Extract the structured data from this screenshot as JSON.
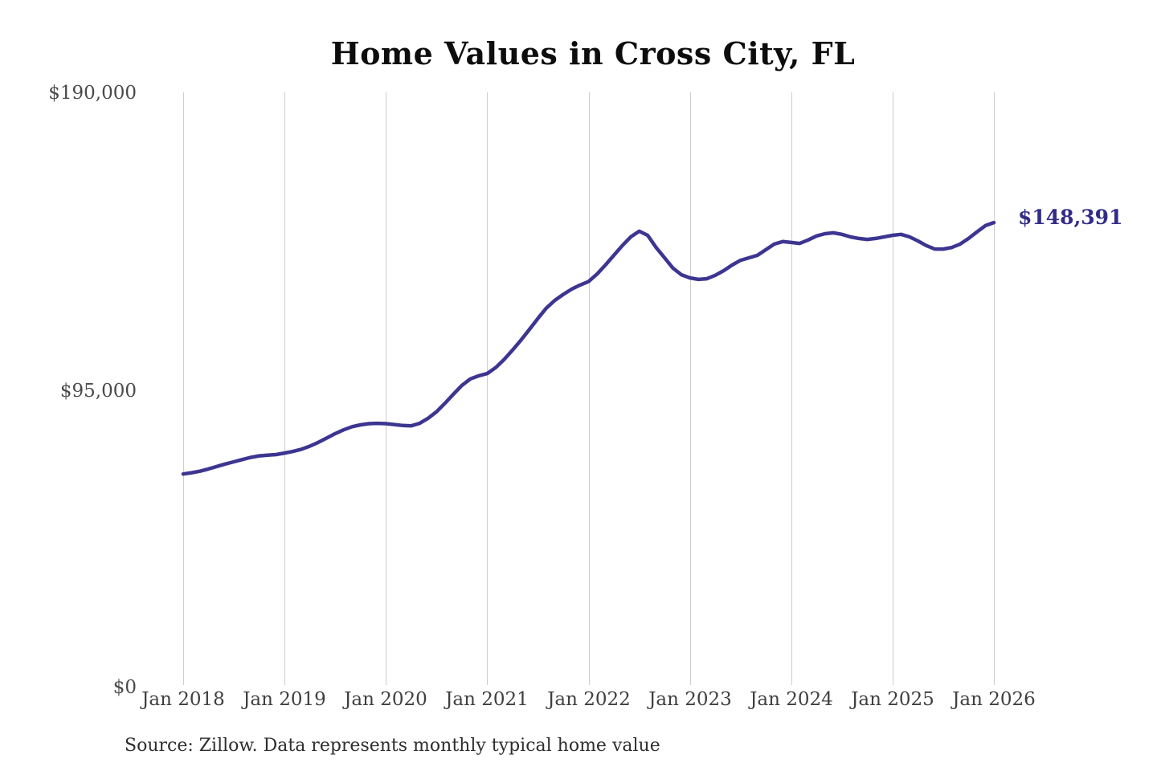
{
  "title": "Home Values in Cross City, FL",
  "source_note": "Source: Zillow. Data represents monthly typical home value",
  "colors": {
    "line": "#3c3591",
    "end_label": "#332c87",
    "gridline": "#cdcdcd",
    "axis_text": "#4a4a4a",
    "title_text": "#0d0d0d"
  },
  "chart_data": {
    "type": "line",
    "title": "Home Values in Cross City, FL",
    "xlabel": "",
    "ylabel": "",
    "ylim": [
      0,
      190000
    ],
    "grid": "vertical-only",
    "legend": "none",
    "x_first": "2018-01",
    "x_last": "2026-01",
    "x_interval": "monthly",
    "x_tick_labels": [
      "Jan 2018",
      "Jan 2019",
      "Jan 2020",
      "Jan 2021",
      "Jan 2022",
      "Jan 2023",
      "Jan 2024",
      "Jan 2025",
      "Jan 2026"
    ],
    "y_ticks": [
      {
        "value": 0,
        "label": "$0"
      },
      {
        "value": 95000,
        "label": "$95,000"
      },
      {
        "value": 190000,
        "label": "$190,000"
      }
    ],
    "final_value": 148391,
    "final_value_label": "$148,391",
    "series": [
      {
        "name": "Typical home value",
        "values": [
          68000,
          68400,
          68900,
          69600,
          70400,
          71200,
          71900,
          72600,
          73300,
          73800,
          74000,
          74200,
          74700,
          75200,
          75900,
          76900,
          78100,
          79500,
          80900,
          82100,
          83100,
          83700,
          84100,
          84200,
          84100,
          83800,
          83500,
          83400,
          84200,
          85800,
          87900,
          90600,
          93500,
          96300,
          98400,
          99400,
          100100,
          102000,
          104600,
          107600,
          110800,
          114200,
          117700,
          121000,
          123500,
          125400,
          127100,
          128400,
          129500,
          131900,
          134800,
          137900,
          141000,
          143800,
          145600,
          144300,
          140400,
          137100,
          133800,
          131700,
          130700,
          130200,
          130400,
          131500,
          133000,
          134800,
          136300,
          137100,
          137900,
          139700,
          141500,
          142300,
          142000,
          141700,
          142800,
          144100,
          144800,
          145100,
          144600,
          143800,
          143300,
          143000,
          143300,
          143800,
          144300,
          144600,
          143800,
          142500,
          141000,
          139900,
          139900,
          140400,
          141500,
          143300,
          145400,
          147400,
          148391
        ]
      }
    ]
  }
}
